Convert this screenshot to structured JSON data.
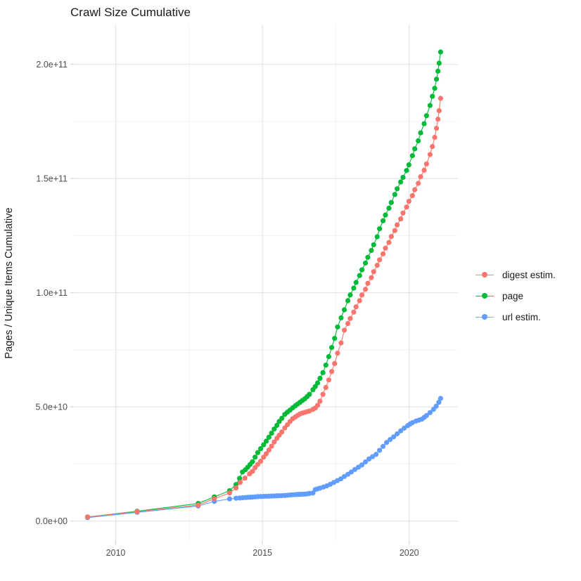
{
  "title": "Crawl Size Cumulative",
  "chart_data": {
    "type": "line",
    "title": "Crawl Size Cumulative",
    "xlabel": "",
    "ylabel": "Pages / Unique Items Cumulative",
    "grid": true,
    "legend_position": "right",
    "x_domain": [
      2008.574,
      2021.66
    ],
    "y_domain_billions": [
      -8.71,
      217.4
    ],
    "x_ticks": {
      "values": [
        2010,
        2015,
        2020
      ],
      "labels": [
        "2010",
        "2015",
        "2020"
      ],
      "minor": [
        2012.5,
        2017.5
      ]
    },
    "y_ticks": {
      "values_billions": [
        0,
        50,
        100,
        150,
        200
      ],
      "labels": [
        "0.0e+00",
        "5.0e+10",
        "1.0e+11",
        "1.5e+11",
        "2.0e+11"
      ],
      "minor_billions": [
        25,
        75,
        125,
        175
      ]
    },
    "units_note": "point values are [decimal year, cumulative count in billions (1e9)]",
    "series": [
      {
        "label": "digest estim.",
        "color": "#F8766D",
        "points": [
          [
            2009.04,
            1.8
          ],
          [
            2010.73,
            4.1
          ],
          [
            2012.81,
            7.0
          ],
          [
            2013.36,
            9.8
          ],
          [
            2013.88,
            12.3
          ],
          [
            2014.1,
            14.5
          ],
          [
            2014.24,
            16.9
          ],
          [
            2014.4,
            18.8
          ],
          [
            2014.56,
            20.7
          ],
          [
            2014.66,
            21.8
          ],
          [
            2014.75,
            23.4
          ],
          [
            2014.84,
            24.8
          ],
          [
            2014.94,
            26.2
          ],
          [
            2015.04,
            28.0
          ],
          [
            2015.13,
            29.5
          ],
          [
            2015.22,
            31.1
          ],
          [
            2015.31,
            32.8
          ],
          [
            2015.4,
            34.6
          ],
          [
            2015.49,
            36.2
          ],
          [
            2015.57,
            37.6
          ],
          [
            2015.66,
            39.0
          ],
          [
            2015.76,
            40.8
          ],
          [
            2015.85,
            42.2
          ],
          [
            2015.94,
            43.6
          ],
          [
            2016.03,
            44.8
          ],
          [
            2016.12,
            45.6
          ],
          [
            2016.2,
            46.3
          ],
          [
            2016.28,
            46.9
          ],
          [
            2016.36,
            47.3
          ],
          [
            2016.44,
            47.6
          ],
          [
            2016.52,
            47.9
          ],
          [
            2016.6,
            48.2
          ],
          [
            2016.72,
            48.9
          ],
          [
            2016.8,
            49.5
          ],
          [
            2016.88,
            50.7
          ],
          [
            2016.96,
            52.5
          ],
          [
            2017.06,
            55.5
          ],
          [
            2017.16,
            58.5
          ],
          [
            2017.26,
            61.8
          ],
          [
            2017.36,
            65.5
          ],
          [
            2017.46,
            69.0
          ],
          [
            2017.56,
            73.5
          ],
          [
            2017.68,
            78.0
          ],
          [
            2017.79,
            83.6
          ],
          [
            2017.91,
            86.5
          ],
          [
            2017.99,
            88.7
          ],
          [
            2018.11,
            91.5
          ],
          [
            2018.19,
            93.8
          ],
          [
            2018.31,
            96.5
          ],
          [
            2018.39,
            99.0
          ],
          [
            2018.51,
            101.5
          ],
          [
            2018.59,
            104.1
          ],
          [
            2018.71,
            106.6
          ],
          [
            2018.79,
            109.2
          ],
          [
            2018.91,
            112.0
          ],
          [
            2018.99,
            114.4
          ],
          [
            2019.11,
            117.0
          ],
          [
            2019.19,
            119.5
          ],
          [
            2019.31,
            122.0
          ],
          [
            2019.39,
            124.6
          ],
          [
            2019.51,
            127.2
          ],
          [
            2019.59,
            129.7
          ],
          [
            2019.71,
            132.3
          ],
          [
            2019.79,
            134.9
          ],
          [
            2019.91,
            137.5
          ],
          [
            2019.99,
            140.0
          ],
          [
            2020.11,
            142.5
          ],
          [
            2020.19,
            145.1
          ],
          [
            2020.31,
            147.9
          ],
          [
            2020.39,
            150.8
          ],
          [
            2020.51,
            153.6
          ],
          [
            2020.59,
            156.4
          ],
          [
            2020.71,
            160.5
          ],
          [
            2020.79,
            164.0
          ],
          [
            2020.87,
            168.0
          ],
          [
            2020.93,
            172.0
          ],
          [
            2020.98,
            176.0
          ],
          [
            2021.02,
            179.7
          ],
          [
            2021.07,
            185.1
          ]
        ]
      },
      {
        "label": "page",
        "color": "#00BA38",
        "points": [
          [
            2009.04,
            1.8
          ],
          [
            2010.73,
            4.3
          ],
          [
            2012.81,
            7.7
          ],
          [
            2013.36,
            10.6
          ],
          [
            2013.88,
            13.3
          ],
          [
            2014.1,
            16.0
          ],
          [
            2014.22,
            18.7
          ],
          [
            2014.32,
            21.5
          ],
          [
            2014.42,
            22.5
          ],
          [
            2014.5,
            23.6
          ],
          [
            2014.58,
            24.8
          ],
          [
            2014.66,
            26.0
          ],
          [
            2014.75,
            28.0
          ],
          [
            2014.84,
            30.0
          ],
          [
            2014.94,
            31.7
          ],
          [
            2015.04,
            33.4
          ],
          [
            2015.13,
            35.0
          ],
          [
            2015.22,
            36.7
          ],
          [
            2015.31,
            38.5
          ],
          [
            2015.4,
            40.3
          ],
          [
            2015.49,
            41.9
          ],
          [
            2015.57,
            43.6
          ],
          [
            2015.66,
            45.0
          ],
          [
            2015.76,
            46.7
          ],
          [
            2015.85,
            47.7
          ],
          [
            2015.94,
            48.6
          ],
          [
            2016.03,
            49.6
          ],
          [
            2016.12,
            50.5
          ],
          [
            2016.2,
            51.3
          ],
          [
            2016.28,
            52.0
          ],
          [
            2016.36,
            52.8
          ],
          [
            2016.44,
            53.5
          ],
          [
            2016.52,
            54.5
          ],
          [
            2016.6,
            55.5
          ],
          [
            2016.72,
            57.5
          ],
          [
            2016.8,
            58.9
          ],
          [
            2016.88,
            60.5
          ],
          [
            2016.96,
            62.5
          ],
          [
            2017.06,
            65.0
          ],
          [
            2017.16,
            68.3
          ],
          [
            2017.26,
            72.0
          ],
          [
            2017.36,
            76.0
          ],
          [
            2017.46,
            80.0
          ],
          [
            2017.56,
            85.0
          ],
          [
            2017.68,
            89.0
          ],
          [
            2017.79,
            92.5
          ],
          [
            2017.91,
            96.5
          ],
          [
            2017.99,
            99.0
          ],
          [
            2018.11,
            102.0
          ],
          [
            2018.19,
            104.5
          ],
          [
            2018.31,
            107.5
          ],
          [
            2018.39,
            110.0
          ],
          [
            2018.51,
            113.0
          ],
          [
            2018.59,
            115.5
          ],
          [
            2018.71,
            118.5
          ],
          [
            2018.79,
            121.0
          ],
          [
            2018.91,
            124.5
          ],
          [
            2018.99,
            128.0
          ],
          [
            2019.11,
            131.5
          ],
          [
            2019.19,
            134.0
          ],
          [
            2019.31,
            137.0
          ],
          [
            2019.39,
            139.5
          ],
          [
            2019.51,
            143.0
          ],
          [
            2019.59,
            145.5
          ],
          [
            2019.71,
            148.5
          ],
          [
            2019.79,
            150.5
          ],
          [
            2019.91,
            153.5
          ],
          [
            2019.99,
            156.0
          ],
          [
            2020.11,
            160.0
          ],
          [
            2020.19,
            163.0
          ],
          [
            2020.31,
            166.5
          ],
          [
            2020.39,
            170.0
          ],
          [
            2020.51,
            174.0
          ],
          [
            2020.59,
            177.5
          ],
          [
            2020.71,
            182.0
          ],
          [
            2020.79,
            186.0
          ],
          [
            2020.87,
            189.5
          ],
          [
            2020.93,
            193.5
          ],
          [
            2020.98,
            197.0
          ],
          [
            2021.02,
            200.5
          ],
          [
            2021.07,
            205.4
          ]
        ]
      },
      {
        "label": "url estim.",
        "color": "#619CFF",
        "points": [
          [
            2009.04,
            1.5
          ],
          [
            2010.73,
            3.8
          ],
          [
            2012.81,
            6.6
          ],
          [
            2013.36,
            8.6
          ],
          [
            2013.88,
            9.7
          ],
          [
            2014.1,
            10.0
          ],
          [
            2014.22,
            10.1
          ],
          [
            2014.32,
            10.2
          ],
          [
            2014.42,
            10.3
          ],
          [
            2014.5,
            10.4
          ],
          [
            2014.58,
            10.45
          ],
          [
            2014.66,
            10.5
          ],
          [
            2014.75,
            10.6
          ],
          [
            2014.84,
            10.7
          ],
          [
            2014.94,
            10.75
          ],
          [
            2015.04,
            10.8
          ],
          [
            2015.13,
            10.85
          ],
          [
            2015.22,
            10.9
          ],
          [
            2015.31,
            10.95
          ],
          [
            2015.4,
            11.0
          ],
          [
            2015.49,
            11.05
          ],
          [
            2015.57,
            11.1
          ],
          [
            2015.66,
            11.15
          ],
          [
            2015.76,
            11.2
          ],
          [
            2015.85,
            11.3
          ],
          [
            2015.94,
            11.4
          ],
          [
            2016.03,
            11.5
          ],
          [
            2016.12,
            11.6
          ],
          [
            2016.2,
            11.65
          ],
          [
            2016.28,
            11.7
          ],
          [
            2016.36,
            11.75
          ],
          [
            2016.44,
            11.8
          ],
          [
            2016.52,
            11.9
          ],
          [
            2016.6,
            12.1
          ],
          [
            2016.72,
            12.3
          ],
          [
            2016.8,
            13.8
          ],
          [
            2016.88,
            14.1
          ],
          [
            2016.96,
            14.4
          ],
          [
            2017.08,
            14.9
          ],
          [
            2017.19,
            15.4
          ],
          [
            2017.31,
            16.1
          ],
          [
            2017.43,
            16.9
          ],
          [
            2017.55,
            17.7
          ],
          [
            2017.67,
            18.5
          ],
          [
            2017.79,
            19.5
          ],
          [
            2017.91,
            20.5
          ],
          [
            2018.03,
            21.5
          ],
          [
            2018.15,
            22.6
          ],
          [
            2018.27,
            23.6
          ],
          [
            2018.39,
            24.6
          ],
          [
            2018.51,
            25.9
          ],
          [
            2018.63,
            27.2
          ],
          [
            2018.75,
            28.2
          ],
          [
            2018.87,
            29.2
          ],
          [
            2018.99,
            31.0
          ],
          [
            2019.11,
            32.7
          ],
          [
            2019.23,
            34.4
          ],
          [
            2019.35,
            35.7
          ],
          [
            2019.47,
            36.9
          ],
          [
            2019.59,
            38.2
          ],
          [
            2019.71,
            39.5
          ],
          [
            2019.83,
            40.7
          ],
          [
            2019.95,
            41.8
          ],
          [
            2020.03,
            42.5
          ],
          [
            2020.11,
            43.1
          ],
          [
            2020.23,
            43.8
          ],
          [
            2020.33,
            44.2
          ],
          [
            2020.43,
            44.6
          ],
          [
            2020.51,
            45.4
          ],
          [
            2020.59,
            46.2
          ],
          [
            2020.71,
            47.5
          ],
          [
            2020.83,
            48.9
          ],
          [
            2020.92,
            50.3
          ],
          [
            2021.01,
            52.0
          ],
          [
            2021.07,
            53.7
          ]
        ]
      }
    ]
  },
  "style": {
    "major_grid_color": "#e4e4e4",
    "minor_grid_color": "#f2f2f2",
    "tick_mark_color": "#cfcfcf",
    "tick_label_color": "#4d4d4d",
    "background": "#ffffff"
  }
}
